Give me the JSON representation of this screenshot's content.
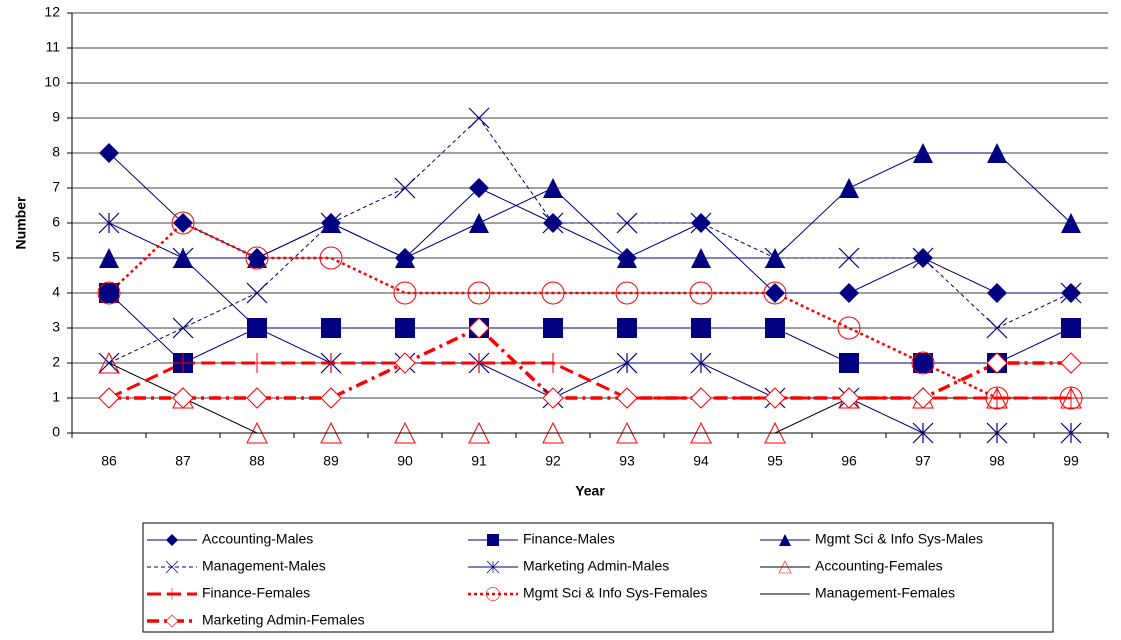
{
  "chart_data": {
    "type": "line",
    "x_label": "Year",
    "y_label": "Number",
    "categories": [
      "86",
      "87",
      "88",
      "89",
      "90",
      "91",
      "92",
      "93",
      "94",
      "95",
      "96",
      "97",
      "98",
      "99"
    ],
    "ylim": [
      0,
      12
    ],
    "yticks": [
      0,
      1,
      2,
      3,
      4,
      5,
      6,
      7,
      8,
      9,
      10,
      11,
      12
    ],
    "grid": true,
    "legend": "bottom",
    "series": [
      {
        "name": "Accounting-Males",
        "color": "#000080",
        "marker": "diamond",
        "dash": "solid",
        "values": [
          8,
          6,
          5,
          6,
          5,
          7,
          6,
          5,
          6,
          4,
          4,
          5,
          4,
          4
        ]
      },
      {
        "name": "Finance-Males",
        "color": "#000080",
        "marker": "square",
        "dash": "solid",
        "values": [
          4,
          2,
          3,
          3,
          3,
          3,
          3,
          3,
          3,
          3,
          2,
          2,
          2,
          3
        ]
      },
      {
        "name": "Mgmt Sci & Info Sys-Males",
        "color": "#000080",
        "marker": "triangle",
        "dash": "solid",
        "values": [
          5,
          5,
          5,
          6,
          5,
          6,
          7,
          5,
          5,
          5,
          7,
          8,
          8,
          6
        ]
      },
      {
        "name": "Management-Males",
        "color": "#000080",
        "marker": "x",
        "dash": "dashed",
        "values": [
          2,
          3,
          4,
          6,
          7,
          9,
          6,
          6,
          6,
          5,
          5,
          5,
          3,
          4
        ]
      },
      {
        "name": "Marketing Admin-Males",
        "color": "#000080",
        "marker": "star",
        "dash": "solid",
        "values": [
          6,
          5,
          3,
          2,
          2,
          2,
          1,
          2,
          2,
          1,
          1,
          0,
          0,
          0
        ]
      },
      {
        "name": "Accounting-Females",
        "color": "#ff0000",
        "line_color": "#000000",
        "marker": "open-triangle",
        "dash": "solid",
        "values": [
          2,
          1,
          0,
          0,
          0,
          0,
          0,
          0,
          0,
          0,
          1,
          1,
          1,
          1
        ]
      },
      {
        "name": "Finance-Females",
        "color": "#ff0000",
        "marker": "plus",
        "dash": "long-dash",
        "values": [
          1,
          2,
          2,
          2,
          2,
          2,
          2,
          1,
          1,
          1,
          1,
          1,
          1,
          1
        ]
      },
      {
        "name": "Mgmt Sci & Info Sys-Females",
        "color": "#ff0000",
        "marker": "open-circle",
        "dash": "dotted",
        "values": [
          4,
          6,
          5,
          5,
          4,
          4,
          4,
          4,
          4,
          4,
          3,
          2,
          1,
          1
        ]
      },
      {
        "name": "Management-Females",
        "color": "#000000",
        "marker": "none",
        "dash": "solid",
        "values": [
          0,
          0,
          0,
          0,
          0,
          0,
          0,
          0,
          0,
          0,
          0,
          0,
          0,
          0
        ]
      },
      {
        "name": "Marketing Admin-Females",
        "color": "#ff0000",
        "marker": "open-diamond",
        "dash": "dash-dot",
        "values": [
          1,
          1,
          1,
          1,
          2,
          3,
          1,
          1,
          1,
          1,
          1,
          1,
          2,
          2
        ]
      }
    ]
  }
}
